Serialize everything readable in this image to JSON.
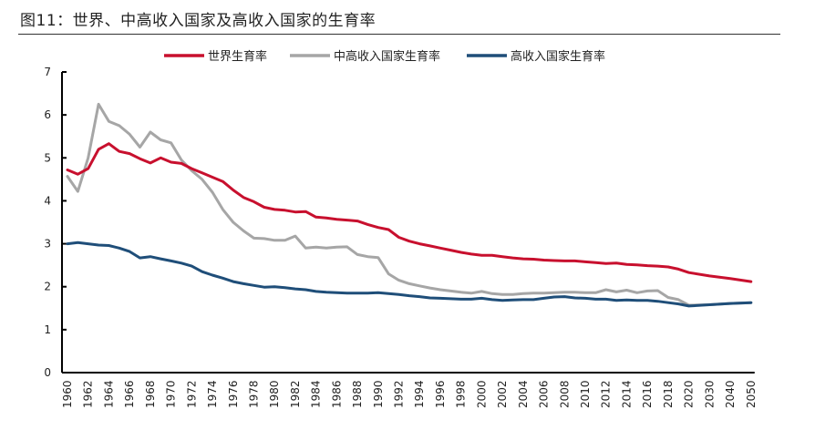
{
  "title": "图11：世界、中高收入国家及高收入国家的生育率",
  "chart_data": {
    "type": "line",
    "title": "图11：世界、中高收入国家及高收入国家的生育率",
    "xlabel": "",
    "ylabel": "",
    "ylim": [
      0,
      7
    ],
    "yticks": [
      "0",
      "1",
      "2",
      "3",
      "4",
      "5",
      "6",
      "7"
    ],
    "grid": false,
    "legend": "top",
    "x": [
      "1960",
      "1961",
      "1962",
      "1963",
      "1964",
      "1965",
      "1966",
      "1967",
      "1968",
      "1969",
      "1970",
      "1971",
      "1972",
      "1973",
      "1974",
      "1975",
      "1976",
      "1977",
      "1978",
      "1979",
      "1980",
      "1981",
      "1982",
      "1983",
      "1984",
      "1985",
      "1986",
      "1987",
      "1988",
      "1989",
      "1990",
      "1991",
      "1992",
      "1993",
      "1994",
      "1995",
      "1996",
      "1997",
      "1998",
      "1999",
      "2000",
      "2001",
      "2002",
      "2003",
      "2004",
      "2005",
      "2006",
      "2007",
      "2008",
      "2009",
      "2010",
      "2011",
      "2012",
      "2013",
      "2014",
      "2015",
      "2016",
      "2017",
      "2018",
      "2019",
      "2020",
      "2030",
      "2040",
      "2050"
    ],
    "xticks": [
      "1960",
      "1962",
      "1964",
      "1966",
      "1968",
      "1970",
      "1972",
      "1974",
      "1976",
      "1978",
      "1980",
      "1982",
      "1984",
      "1986",
      "1988",
      "1990",
      "1992",
      "1994",
      "1996",
      "1998",
      "2000",
      "2002",
      "2004",
      "2006",
      "2008",
      "2010",
      "2012",
      "2014",
      "2016",
      "2018",
      "2020",
      "2030",
      "2040",
      "2050"
    ],
    "series": [
      {
        "name": "世界生育率",
        "color": "#c8102e",
        "values": [
          4.72,
          4.62,
          4.75,
          5.2,
          5.33,
          5.15,
          5.1,
          4.98,
          4.88,
          5.0,
          4.9,
          4.87,
          4.75,
          4.65,
          4.55,
          4.45,
          4.25,
          4.08,
          3.98,
          3.85,
          3.8,
          3.78,
          3.74,
          3.75,
          3.62,
          3.6,
          3.57,
          3.55,
          3.53,
          3.45,
          3.38,
          3.33,
          3.15,
          3.06,
          3.0,
          2.95,
          2.9,
          2.85,
          2.8,
          2.76,
          2.73,
          2.73,
          2.7,
          2.67,
          2.65,
          2.64,
          2.62,
          2.61,
          2.6,
          2.6,
          2.58,
          2.56,
          2.54,
          2.55,
          2.52,
          2.51,
          2.49,
          2.48,
          2.46,
          2.41,
          2.33,
          2.25,
          2.19,
          2.12
        ]
      },
      {
        "name": "中高收入国家生育率",
        "color": "#a6a6a6",
        "values": [
          4.57,
          4.22,
          5.0,
          6.25,
          5.85,
          5.75,
          5.55,
          5.25,
          5.6,
          5.42,
          5.35,
          4.95,
          4.7,
          4.5,
          4.2,
          3.8,
          3.5,
          3.3,
          3.13,
          3.12,
          3.08,
          3.08,
          3.18,
          2.9,
          2.92,
          2.9,
          2.92,
          2.93,
          2.75,
          2.7,
          2.68,
          2.3,
          2.15,
          2.07,
          2.02,
          1.97,
          1.93,
          1.9,
          1.87,
          1.85,
          1.89,
          1.84,
          1.82,
          1.82,
          1.84,
          1.85,
          1.85,
          1.86,
          1.87,
          1.87,
          1.86,
          1.86,
          1.93,
          1.88,
          1.92,
          1.86,
          1.9,
          1.91,
          1.75,
          1.7,
          1.57,
          1.58,
          1.61,
          1.63
        ]
      },
      {
        "name": "高收入国家生育率",
        "color": "#1f4e79",
        "values": [
          3.0,
          3.03,
          3.0,
          2.97,
          2.96,
          2.9,
          2.82,
          2.67,
          2.7,
          2.65,
          2.6,
          2.55,
          2.48,
          2.35,
          2.27,
          2.2,
          2.12,
          2.07,
          2.03,
          1.99,
          2.0,
          1.98,
          1.95,
          1.93,
          1.89,
          1.87,
          1.86,
          1.85,
          1.85,
          1.85,
          1.86,
          1.84,
          1.82,
          1.79,
          1.77,
          1.74,
          1.73,
          1.72,
          1.71,
          1.71,
          1.73,
          1.7,
          1.68,
          1.69,
          1.7,
          1.7,
          1.73,
          1.76,
          1.77,
          1.74,
          1.73,
          1.71,
          1.71,
          1.68,
          1.69,
          1.68,
          1.68,
          1.66,
          1.63,
          1.6,
          1.55,
          1.58,
          1.61,
          1.63
        ]
      }
    ]
  }
}
